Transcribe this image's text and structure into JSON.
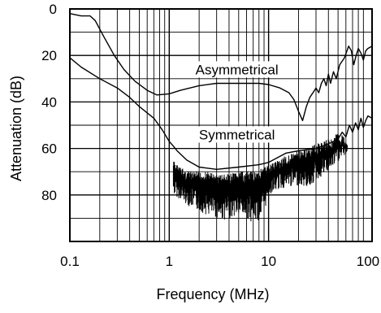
{
  "chart_data": {
    "type": "line",
    "xlabel": "Frequency (MHz)",
    "ylabel": "Attenuation (dB)",
    "x_scale": "log",
    "xlim": [
      0.1,
      110
    ],
    "ylim": [
      100,
      0
    ],
    "y_inverted": true,
    "x_ticks": [
      {
        "value": 0.1,
        "label": "0.1"
      },
      {
        "value": 1,
        "label": "1"
      },
      {
        "value": 10,
        "label": "10"
      },
      {
        "value": 100,
        "label": "100"
      }
    ],
    "y_ticks": [
      {
        "value": 0,
        "label": "0"
      },
      {
        "value": 20,
        "label": "20"
      },
      {
        "value": 40,
        "label": "40"
      },
      {
        "value": 60,
        "label": "60"
      },
      {
        "value": 80,
        "label": "80"
      }
    ],
    "grid": true,
    "series": [
      {
        "name": "Asymmetrical",
        "label": {
          "text": "Asymmetrical",
          "x": 4.8,
          "y": 26
        },
        "points": [
          [
            0.1,
            2
          ],
          [
            0.13,
            3
          ],
          [
            0.16,
            3
          ],
          [
            0.18,
            5
          ],
          [
            0.22,
            12
          ],
          [
            0.28,
            20
          ],
          [
            0.35,
            26
          ],
          [
            0.45,
            31
          ],
          [
            0.6,
            35
          ],
          [
            0.75,
            37
          ],
          [
            1.0,
            36.5
          ],
          [
            1.3,
            35
          ],
          [
            2,
            33
          ],
          [
            3,
            32
          ],
          [
            5,
            32
          ],
          [
            8,
            32
          ],
          [
            10,
            32.5
          ],
          [
            13,
            34
          ],
          [
            16,
            36
          ],
          [
            18,
            39
          ],
          [
            20,
            44
          ],
          [
            22,
            48
          ],
          [
            24,
            42
          ],
          [
            26,
            38
          ],
          [
            28,
            36
          ],
          [
            30,
            34
          ],
          [
            32,
            36
          ],
          [
            34,
            32
          ],
          [
            36,
            30
          ],
          [
            38,
            33
          ],
          [
            40,
            28
          ],
          [
            42,
            32
          ],
          [
            45,
            27
          ],
          [
            48,
            30
          ],
          [
            52,
            24
          ],
          [
            58,
            21
          ],
          [
            64,
            16
          ],
          [
            68,
            18
          ],
          [
            72,
            24
          ],
          [
            76,
            20
          ],
          [
            80,
            17
          ],
          [
            85,
            19
          ],
          [
            90,
            22
          ],
          [
            95,
            18
          ],
          [
            100,
            17
          ],
          [
            110,
            16
          ]
        ]
      },
      {
        "name": "Symmetrical",
        "label": {
          "text": "Symmetrical",
          "x": 4.8,
          "y": 54
        },
        "points": [
          [
            0.1,
            21
          ],
          [
            0.13,
            25
          ],
          [
            0.2,
            30
          ],
          [
            0.3,
            34
          ],
          [
            0.4,
            38
          ],
          [
            0.5,
            42
          ],
          [
            0.7,
            47
          ],
          [
            0.85,
            52
          ],
          [
            1.0,
            57
          ],
          [
            1.1,
            59
          ],
          [
            1.2,
            61
          ],
          [
            1.5,
            65
          ],
          [
            2,
            68
          ],
          [
            3,
            69
          ],
          [
            5,
            68
          ],
          [
            8,
            67
          ],
          [
            10,
            66
          ],
          [
            15,
            62
          ],
          [
            20,
            61
          ],
          [
            30,
            60
          ],
          [
            40,
            58
          ],
          [
            50,
            56
          ],
          [
            55,
            53
          ],
          [
            60,
            55
          ],
          [
            65,
            50
          ],
          [
            70,
            53
          ],
          [
            75,
            49
          ],
          [
            80,
            52
          ],
          [
            85,
            47
          ],
          [
            90,
            51
          ],
          [
            95,
            48
          ],
          [
            100,
            46
          ],
          [
            110,
            47
          ]
        ]
      }
    ],
    "noise_band": {
      "x_range": [
        1.1,
        62
      ],
      "envelope": [
        [
          1.1,
          65,
          80
        ],
        [
          1.3,
          68,
          82
        ],
        [
          1.6,
          70,
          85
        ],
        [
          2.0,
          70,
          87
        ],
        [
          2.5,
          70,
          89
        ],
        [
          3.0,
          71,
          90
        ],
        [
          3.5,
          71,
          91
        ],
        [
          4.0,
          71,
          90
        ],
        [
          5.0,
          70,
          89
        ],
        [
          6.0,
          70,
          90
        ],
        [
          7.0,
          70,
          92
        ],
        [
          8.0,
          69,
          91
        ],
        [
          9.0,
          68,
          88
        ],
        [
          10,
          67,
          80
        ],
        [
          12,
          65,
          78
        ],
        [
          15,
          63,
          77
        ],
        [
          20,
          61,
          76
        ],
        [
          25,
          60,
          77
        ],
        [
          30,
          58,
          74
        ],
        [
          35,
          57,
          72
        ],
        [
          40,
          56,
          70
        ],
        [
          45,
          55,
          68
        ],
        [
          50,
          53,
          66
        ],
        [
          55,
          54,
          64
        ],
        [
          62,
          56,
          62
        ]
      ]
    }
  }
}
